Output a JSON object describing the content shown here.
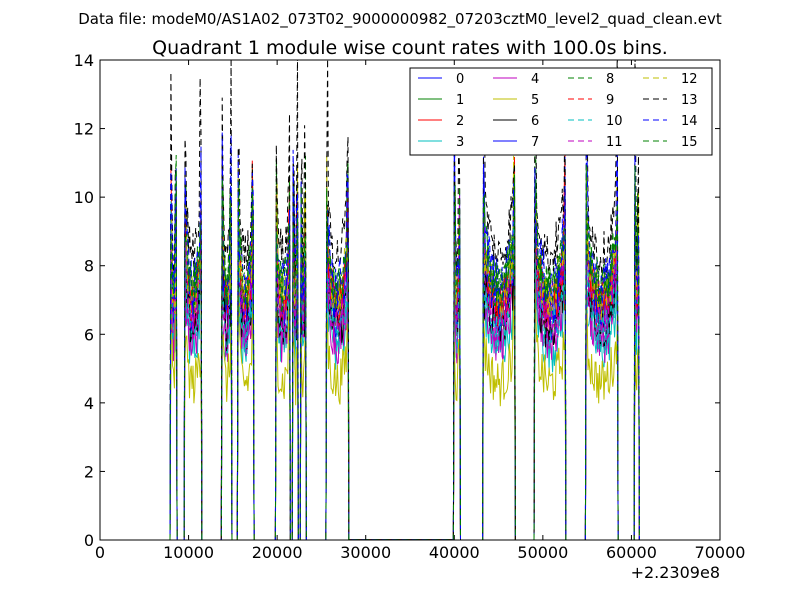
{
  "chart_data": {
    "type": "line",
    "suptitle": "Data file: modeM0/AS1A02_073T02_9000000982_07203cztM0_level2_quad_clean.evt",
    "title": "Quadrant 1 module wise count rates with 100.0s bins.",
    "xlabel": "",
    "ylabel": "",
    "x_offset_label": "+2.2309e8",
    "xlim": [
      0,
      70000
    ],
    "ylim": [
      0,
      14
    ],
    "x_ticks": [
      0,
      10000,
      20000,
      30000,
      40000,
      50000,
      60000,
      70000
    ],
    "y_ticks": [
      0,
      2,
      4,
      6,
      8,
      10,
      12,
      14
    ],
    "x_tick_labels": [
      "0",
      "10000",
      "20000",
      "30000",
      "40000",
      "50000",
      "60000",
      "70000"
    ],
    "y_tick_labels": [
      "0",
      "2",
      "4",
      "6",
      "8",
      "10",
      "12",
      "14"
    ],
    "grid": false,
    "legend_position": "top-right",
    "legend_columns": 4,
    "segments": [
      {
        "start": 8000,
        "end": 8600
      },
      {
        "start": 9600,
        "end": 11400
      },
      {
        "start": 13800,
        "end": 14800
      },
      {
        "start": 15600,
        "end": 17300
      },
      {
        "start": 19900,
        "end": 21400
      },
      {
        "start": 21800,
        "end": 22300
      },
      {
        "start": 22700,
        "end": 23200
      },
      {
        "start": 25600,
        "end": 28000
      },
      {
        "start": 40000,
        "end": 40600
      },
      {
        "start": 43300,
        "end": 46800
      },
      {
        "start": 49100,
        "end": 52500
      },
      {
        "start": 54900,
        "end": 58400
      },
      {
        "start": 60400,
        "end": 60800
      }
    ],
    "series": [
      {
        "name": "0",
        "color": "#0000ff",
        "dash": "solid",
        "level": 7.3
      },
      {
        "name": "1",
        "color": "#008000",
        "dash": "solid",
        "level": 7.9
      },
      {
        "name": "2",
        "color": "#ff0000",
        "dash": "solid",
        "level": 7.5
      },
      {
        "name": "3",
        "color": "#00bfbf",
        "dash": "solid",
        "level": 6.3
      },
      {
        "name": "4",
        "color": "#bf00bf",
        "dash": "solid",
        "level": 6.6
      },
      {
        "name": "5",
        "color": "#bfbf00",
        "dash": "solid",
        "level": 5.2
      },
      {
        "name": "6",
        "color": "#000000",
        "dash": "solid",
        "level": 7.0
      },
      {
        "name": "7",
        "color": "#0000ff",
        "dash": "solid",
        "level": 7.7
      },
      {
        "name": "8",
        "color": "#008000",
        "dash": "dashed",
        "level": 8.2
      },
      {
        "name": "9",
        "color": "#ff0000",
        "dash": "dashed",
        "level": 7.8
      },
      {
        "name": "10",
        "color": "#00bfbf",
        "dash": "dashed",
        "level": 6.9
      },
      {
        "name": "11",
        "color": "#bf00bf",
        "dash": "dashed",
        "level": 7.2
      },
      {
        "name": "12",
        "color": "#bfbf00",
        "dash": "dashed",
        "level": 8.0
      },
      {
        "name": "13",
        "color": "#000000",
        "dash": "dashed",
        "level": 9.4
      },
      {
        "name": "14",
        "color": "#0000ff",
        "dash": "dashed",
        "level": 8.5
      },
      {
        "name": "15",
        "color": "#008000",
        "dash": "dashed",
        "level": 8.4
      }
    ]
  }
}
